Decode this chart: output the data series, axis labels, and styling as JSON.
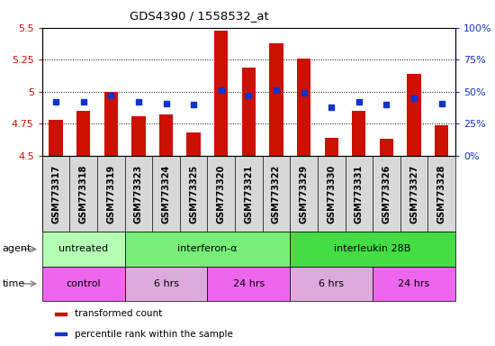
{
  "title": "GDS4390 / 1558532_at",
  "samples": [
    "GSM773317",
    "GSM773318",
    "GSM773319",
    "GSM773323",
    "GSM773324",
    "GSM773325",
    "GSM773320",
    "GSM773321",
    "GSM773322",
    "GSM773329",
    "GSM773330",
    "GSM773331",
    "GSM773326",
    "GSM773327",
    "GSM773328"
  ],
  "red_values": [
    4.78,
    4.85,
    5.0,
    4.81,
    4.82,
    4.68,
    5.48,
    5.19,
    5.38,
    5.26,
    4.64,
    4.85,
    4.63,
    5.14,
    4.74
  ],
  "blue_values": [
    4.92,
    4.92,
    4.97,
    4.92,
    4.91,
    4.9,
    5.01,
    4.97,
    5.01,
    4.99,
    4.88,
    4.92,
    4.9,
    4.95,
    4.91
  ],
  "ylim_left": [
    4.5,
    5.5
  ],
  "ylim_right": [
    0,
    100
  ],
  "yticks_left": [
    4.5,
    4.75,
    5.0,
    5.25,
    5.5
  ],
  "yticks_right": [
    0,
    25,
    50,
    75,
    100
  ],
  "ytick_labels_left": [
    "4.5",
    "4.75",
    "5",
    "5.25",
    "5.5"
  ],
  "ytick_labels_right": [
    "0%",
    "25%",
    "50%",
    "75%",
    "100%"
  ],
  "agent_groups": [
    {
      "label": "untreated",
      "start": 0,
      "end": 3,
      "color": "#b3ffb3"
    },
    {
      "label": "interferon-α",
      "start": 3,
      "end": 9,
      "color": "#77ee77"
    },
    {
      "label": "interleukin 28B",
      "start": 9,
      "end": 15,
      "color": "#44dd44"
    }
  ],
  "time_groups": [
    {
      "label": "control",
      "start": 0,
      "end": 3,
      "color": "#ee66ee"
    },
    {
      "label": "6 hrs",
      "start": 3,
      "end": 6,
      "color": "#ddaadd"
    },
    {
      "label": "24 hrs",
      "start": 6,
      "end": 9,
      "color": "#ee66ee"
    },
    {
      "label": "6 hrs",
      "start": 9,
      "end": 12,
      "color": "#ddaadd"
    },
    {
      "label": "24 hrs",
      "start": 12,
      "end": 15,
      "color": "#ee66ee"
    }
  ],
  "legend_items": [
    {
      "color": "#cc1100",
      "label": "transformed count"
    },
    {
      "color": "#1133cc",
      "label": "percentile rank within the sample"
    }
  ],
  "bar_color": "#cc1100",
  "dot_color": "#1133cc",
  "grid_color": "#000000",
  "background_color": "#ffffff",
  "tick_label_color_left": "#cc1100",
  "tick_label_color_right": "#1133cc",
  "sample_bg_color": "#d8d8d8",
  "label_fontsize": 8,
  "sample_fontsize": 7
}
